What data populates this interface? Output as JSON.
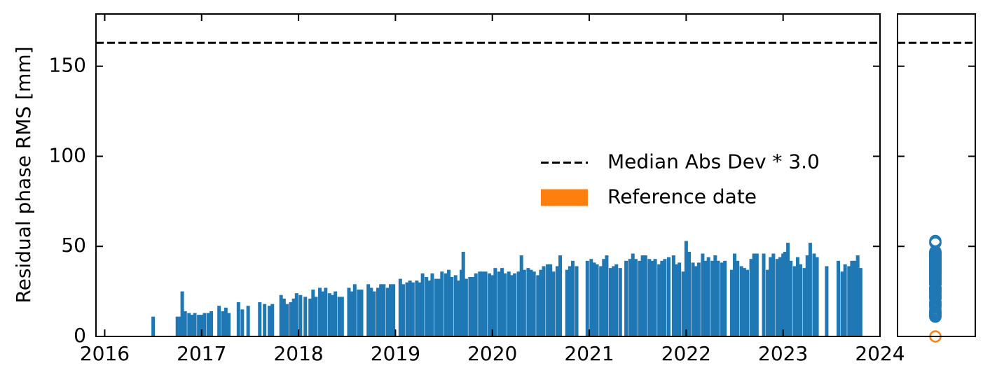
{
  "chart_data": {
    "type": "bar",
    "ylabel": "Residual phase RMS [mm]",
    "color": "#1f77b4",
    "x": [
      2016.5,
      2016.75,
      2016.78,
      2016.8,
      2016.83,
      2016.87,
      2016.9,
      2016.93,
      2016.97,
      2017.0,
      2017.03,
      2017.07,
      2017.1,
      2017.18,
      2017.22,
      2017.25,
      2017.28,
      2017.38,
      2017.42,
      2017.48,
      2017.6,
      2017.65,
      2017.7,
      2017.73,
      2017.82,
      2017.85,
      2017.88,
      2017.92,
      2017.95,
      2017.98,
      2018.02,
      2018.07,
      2018.12,
      2018.15,
      2018.18,
      2018.22,
      2018.25,
      2018.28,
      2018.32,
      2018.35,
      2018.38,
      2018.42,
      2018.45,
      2018.52,
      2018.55,
      2018.58,
      2018.62,
      2018.65,
      2018.72,
      2018.75,
      2018.78,
      2018.82,
      2018.85,
      2018.88,
      2018.92,
      2018.95,
      2018.98,
      2019.05,
      2019.08,
      2019.12,
      2019.15,
      2019.18,
      2019.22,
      2019.25,
      2019.28,
      2019.32,
      2019.35,
      2019.38,
      2019.42,
      2019.45,
      2019.48,
      2019.52,
      2019.55,
      2019.58,
      2019.62,
      2019.65,
      2019.68,
      2019.7,
      2019.73,
      2019.77,
      2019.8,
      2019.83,
      2019.87,
      2019.9,
      2019.93,
      2019.97,
      2020.0,
      2020.03,
      2020.07,
      2020.1,
      2020.13,
      2020.17,
      2020.2,
      2020.23,
      2020.27,
      2020.3,
      2020.33,
      2020.37,
      2020.4,
      2020.43,
      2020.47,
      2020.5,
      2020.53,
      2020.57,
      2020.6,
      2020.63,
      2020.67,
      2020.7,
      2020.77,
      2020.8,
      2020.83,
      2020.87,
      2020.98,
      2021.02,
      2021.05,
      2021.08,
      2021.12,
      2021.15,
      2021.18,
      2021.22,
      2021.25,
      2021.28,
      2021.32,
      2021.38,
      2021.42,
      2021.45,
      2021.48,
      2021.52,
      2021.55,
      2021.58,
      2021.62,
      2021.65,
      2021.68,
      2021.72,
      2021.75,
      2021.78,
      2021.82,
      2021.87,
      2021.9,
      2021.93,
      2021.97,
      2022.0,
      2022.03,
      2022.07,
      2022.1,
      2022.13,
      2022.17,
      2022.2,
      2022.23,
      2022.27,
      2022.3,
      2022.33,
      2022.37,
      2022.4,
      2022.47,
      2022.5,
      2022.53,
      2022.57,
      2022.6,
      2022.63,
      2022.67,
      2022.7,
      2022.73,
      2022.8,
      2022.84,
      2022.87,
      2022.9,
      2022.94,
      2022.97,
      2023.0,
      2023.02,
      2023.05,
      2023.08,
      2023.12,
      2023.15,
      2023.18,
      2023.22,
      2023.25,
      2023.28,
      2023.32,
      2023.35,
      2023.45,
      2023.57,
      2023.61,
      2023.64,
      2023.68,
      2023.71,
      2023.74,
      2023.77,
      2023.8
    ],
    "values": [
      11,
      11,
      11,
      25,
      14,
      13,
      12,
      13,
      12,
      12,
      13,
      13,
      14,
      17,
      14,
      16,
      13,
      19,
      15,
      17,
      19,
      18,
      17,
      18,
      23,
      21,
      18,
      19,
      21,
      24,
      23,
      22,
      21,
      26,
      22,
      27,
      25,
      27,
      24,
      23,
      25,
      22,
      22,
      27,
      25,
      29,
      26,
      26,
      29,
      27,
      25,
      27,
      29,
      29,
      27,
      29,
      29,
      32,
      29,
      30,
      31,
      30,
      31,
      30,
      35,
      33,
      31,
      35,
      32,
      32,
      36,
      35,
      37,
      33,
      34,
      31,
      37,
      47,
      32,
      33,
      33,
      35,
      36,
      36,
      36,
      35,
      34,
      38,
      36,
      38,
      35,
      36,
      34,
      35,
      36,
      45,
      37,
      38,
      37,
      36,
      34,
      37,
      39,
      40,
      40,
      36,
      39,
      45,
      37,
      39,
      42,
      39,
      42,
      43,
      41,
      40,
      39,
      43,
      45,
      38,
      39,
      40,
      38,
      42,
      43,
      46,
      43,
      42,
      45,
      45,
      43,
      42,
      43,
      40,
      42,
      43,
      44,
      45,
      40,
      41,
      36,
      53,
      47,
      41,
      39,
      41,
      46,
      42,
      44,
      42,
      45,
      42,
      41,
      42,
      37,
      46,
      42,
      39,
      38,
      37,
      43,
      46,
      46,
      46,
      37,
      44,
      46,
      43,
      44,
      46,
      47,
      52,
      42,
      39,
      44,
      40,
      38,
      45,
      52,
      46,
      44,
      39,
      42,
      36,
      40,
      39,
      42,
      42,
      45,
      38
    ],
    "threshold": {
      "name": "Median Abs Dev * 3.0",
      "value": 163,
      "color": "#000000"
    },
    "reference": {
      "name": "Reference date",
      "color": "#ff7f0e",
      "values": [
        0
      ]
    },
    "xlim": [
      2015.91,
      2024
    ],
    "xticks": [
      2016,
      2017,
      2018,
      2019,
      2020,
      2021,
      2022,
      2023,
      2024
    ],
    "ylim": [
      0,
      179
    ],
    "yticks": [
      0,
      50,
      100,
      150
    ],
    "legend": "center right"
  }
}
